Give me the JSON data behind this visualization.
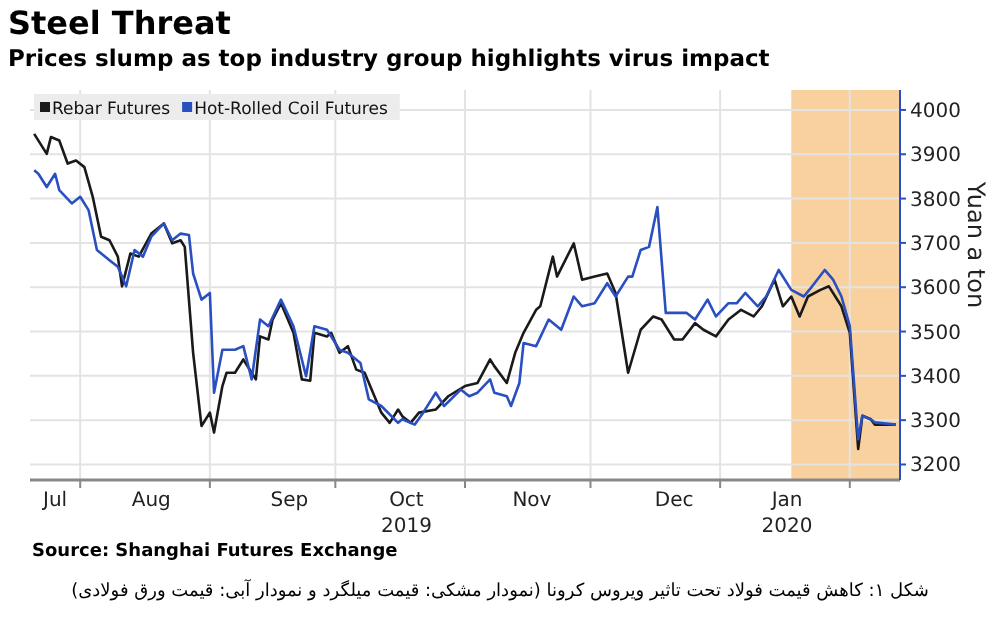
{
  "chart_data": {
    "type": "line",
    "title": "Steel Threat",
    "subtitle": "Prices slump as top industry group highlights virus impact",
    "ylabel": "Yuan a ton",
    "annotations": [
      "Source: Shanghai Futures Exchange",
      "شکل ۱: کاهش قیمت فولاد تحت تاثیر ویروس کرونا (نمودار مشکی: قیمت میلگرد و نمودار آبی: قیمت ورق فولادی)"
    ],
    "xlim": [
      "2019-07-20",
      "2020-02-13"
    ],
    "xticks": [
      {
        "value": "2019-07-26",
        "label": "Jul"
      },
      {
        "value": "2019-08-18",
        "label": "Aug"
      },
      {
        "value": "2019-09-20",
        "label": "Sep"
      },
      {
        "value": "2019-10-18",
        "label": "Oct\n2019"
      },
      {
        "value": "2019-11-17",
        "label": "Nov"
      },
      {
        "value": "2019-12-21",
        "label": "Dec"
      },
      {
        "value": "2020-01-17",
        "label": "Jan\n2020"
      },
      {
        "value": "2019-08-01",
        "label": null
      },
      {
        "value": "2019-09-01",
        "label": null
      },
      {
        "value": "2019-10-01",
        "label": null
      },
      {
        "value": "2019-11-01",
        "label": null
      },
      {
        "value": "2019-12-01",
        "label": null
      },
      {
        "value": "2020-01-01",
        "label": null
      },
      {
        "value": "2020-02-01",
        "label": null
      }
    ],
    "ylim": [
      3165,
      4045
    ],
    "yticks": [
      3200,
      3300,
      3400,
      3500,
      3600,
      3700,
      3800,
      3900,
      4000
    ],
    "grid": true,
    "legend": "top left",
    "marker": "none",
    "line_style": "solid",
    "bands": [
      {
        "axis": "x",
        "from": "2020-01-18",
        "to": "2020-02-13",
        "color": "#f7c27e"
      }
    ],
    "series": [
      {
        "name": "Rebar Futures",
        "color": "#1a1a1a",
        "x": [
          "2019-07-21",
          "2019-07-24",
          "2019-07-25",
          "2019-07-27",
          "2019-07-29",
          "2019-07-31",
          "2019-08-02",
          "2019-08-04",
          "2019-08-06",
          "2019-08-08",
          "2019-08-10",
          "2019-08-11",
          "2019-08-13",
          "2019-08-15",
          "2019-08-18",
          "2019-08-21",
          "2019-08-23",
          "2019-08-25",
          "2019-08-26",
          "2019-08-28",
          "2019-08-30",
          "2019-09-01",
          "2019-09-02",
          "2019-09-04",
          "2019-09-05",
          "2019-09-07",
          "2019-09-09",
          "2019-09-12",
          "2019-09-13",
          "2019-09-15",
          "2019-09-16",
          "2019-09-18",
          "2019-09-19",
          "2019-09-21",
          "2019-09-23",
          "2019-09-25",
          "2019-09-26",
          "2019-09-29",
          "2019-09-30",
          "2019-10-02",
          "2019-10-04",
          "2019-10-06",
          "2019-10-08",
          "2019-10-10",
          "2019-10-12",
          "2019-10-14",
          "2019-10-16",
          "2019-10-17",
          "2019-10-19",
          "2019-10-21",
          "2019-10-25",
          "2019-10-28",
          "2019-11-01",
          "2019-11-04",
          "2019-11-07",
          "2019-11-08",
          "2019-11-11",
          "2019-11-13",
          "2019-11-15",
          "2019-11-18",
          "2019-11-19",
          "2019-11-22",
          "2019-11-23",
          "2019-11-27",
          "2019-11-29",
          "2019-12-02",
          "2019-12-05",
          "2019-12-07",
          "2019-12-10",
          "2019-12-13",
          "2019-12-16",
          "2019-12-18",
          "2019-12-21",
          "2019-12-23",
          "2019-12-26",
          "2019-12-28",
          "2019-12-31",
          "2020-01-03",
          "2020-01-06",
          "2020-01-09",
          "2020-01-11",
          "2020-01-14",
          "2020-01-16",
          "2020-01-18",
          "2020-01-20",
          "2020-01-22",
          "2020-01-25",
          "2020-01-27",
          "2020-01-30",
          "2020-02-01",
          "2020-02-03",
          "2020-02-04",
          "2020-02-06",
          "2020-02-07",
          "2020-02-12"
        ],
        "values": [
          3946,
          3901,
          3939,
          3931,
          3879,
          3886,
          3871,
          3804,
          3714,
          3706,
          3669,
          3602,
          3676,
          3669,
          3721,
          3744,
          3699,
          3706,
          3691,
          3452,
          3287,
          3317,
          3272,
          3377,
          3407,
          3407,
          3437,
          3392,
          3489,
          3482,
          3527,
          3564,
          3542,
          3497,
          3392,
          3389,
          3497,
          3489,
          3497,
          3452,
          3467,
          3414,
          3407,
          3362,
          3317,
          3294,
          3324,
          3309,
          3294,
          3317,
          3324,
          3354,
          3377,
          3384,
          3437,
          3422,
          3384,
          3452,
          3497,
          3549,
          3557,
          3669,
          3624,
          3699,
          3617,
          3624,
          3631,
          3587,
          3407,
          3504,
          3534,
          3527,
          3482,
          3482,
          3519,
          3504,
          3489,
          3527,
          3549,
          3534,
          3557,
          3617,
          3557,
          3579,
          3534,
          3579,
          3594,
          3602,
          3557,
          3497,
          3235,
          3310,
          3302,
          3290,
          3290
        ]
      },
      {
        "name": "Hot-Rolled Coil Futures",
        "color": "#2a4fc0",
        "x": [
          "2019-07-21",
          "2019-07-22",
          "2019-07-24",
          "2019-07-26",
          "2019-07-27",
          "2019-07-30",
          "2019-08-01",
          "2019-08-03",
          "2019-08-05",
          "2019-08-08",
          "2019-08-10",
          "2019-08-12",
          "2019-08-14",
          "2019-08-16",
          "2019-08-18",
          "2019-08-21",
          "2019-08-23",
          "2019-08-25",
          "2019-08-27",
          "2019-08-28",
          "2019-08-30",
          "2019-09-01",
          "2019-09-02",
          "2019-09-04",
          "2019-09-07",
          "2019-09-09",
          "2019-09-11",
          "2019-09-13",
          "2019-09-15",
          "2019-09-18",
          "2019-09-21",
          "2019-09-24",
          "2019-09-26",
          "2019-09-29",
          "2019-10-02",
          "2019-10-04",
          "2019-10-07",
          "2019-10-09",
          "2019-10-12",
          "2019-10-16",
          "2019-10-17",
          "2019-10-20",
          "2019-10-22",
          "2019-10-25",
          "2019-10-27",
          "2019-10-31",
          "2019-11-02",
          "2019-11-04",
          "2019-11-07",
          "2019-11-08",
          "2019-11-11",
          "2019-11-12",
          "2019-11-14",
          "2019-11-15",
          "2019-11-18",
          "2019-11-21",
          "2019-11-24",
          "2019-11-27",
          "2019-11-29",
          "2019-12-02",
          "2019-12-05",
          "2019-12-07",
          "2019-12-10",
          "2019-12-11",
          "2019-12-13",
          "2019-12-15",
          "2019-12-17",
          "2019-12-19",
          "2019-12-22",
          "2019-12-24",
          "2019-12-26",
          "2019-12-29",
          "2019-12-31",
          "2020-01-03",
          "2020-01-05",
          "2020-01-07",
          "2020-01-10",
          "2020-01-12",
          "2020-01-15",
          "2020-01-18",
          "2020-01-21",
          "2020-01-23",
          "2020-01-26",
          "2020-01-28",
          "2020-01-30",
          "2020-02-01",
          "2020-02-03",
          "2020-02-04",
          "2020-02-06",
          "2020-02-07",
          "2020-02-12"
        ],
        "values": [
          3864,
          3856,
          3826,
          3856,
          3819,
          3789,
          3804,
          3774,
          3684,
          3661,
          3646,
          3602,
          3684,
          3669,
          3714,
          3744,
          3706,
          3721,
          3718,
          3631,
          3572,
          3587,
          3362,
          3459,
          3459,
          3467,
          3392,
          3527,
          3512,
          3572,
          3512,
          3399,
          3512,
          3504,
          3459,
          3452,
          3429,
          3347,
          3332,
          3294,
          3302,
          3290,
          3317,
          3362,
          3332,
          3369,
          3354,
          3362,
          3392,
          3362,
          3354,
          3332,
          3384,
          3474,
          3467,
          3527,
          3504,
          3579,
          3557,
          3564,
          3609,
          3579,
          3624,
          3624,
          3684,
          3691,
          3781,
          3542,
          3542,
          3542,
          3527,
          3572,
          3534,
          3564,
          3564,
          3587,
          3557,
          3579,
          3639,
          3594,
          3579,
          3602,
          3639,
          3617,
          3579,
          3512,
          3257,
          3310,
          3302,
          3295,
          3290
        ]
      }
    ]
  }
}
